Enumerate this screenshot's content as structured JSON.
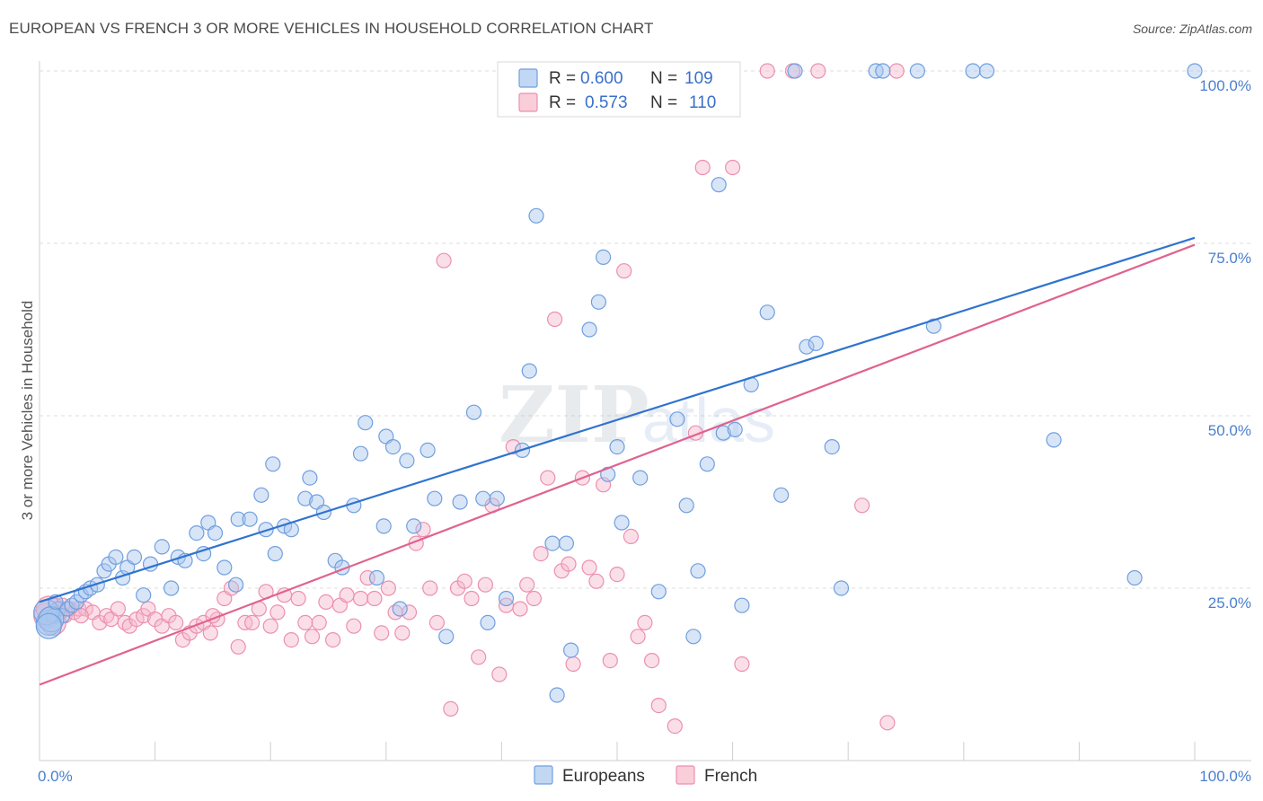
{
  "header": {
    "title": "EUROPEAN VS FRENCH 3 OR MORE VEHICLES IN HOUSEHOLD CORRELATION CHART",
    "source": "Source: ZipAtlas.com"
  },
  "legend": {
    "r_label": "R =",
    "n_label": "N =",
    "europeans_r": "0.600",
    "europeans_n": "109",
    "french_r": "0.573",
    "french_n": "110"
  },
  "colors": {
    "europeans_fill": "#a8c6ee",
    "europeans_stroke": "#6f9fe0",
    "europeans_line": "#2f73d0",
    "french_fill": "#f6b8cb",
    "french_stroke": "#ec8fae",
    "french_line": "#e0628f"
  },
  "chart_data": {
    "type": "scatter",
    "title": "EUROPEAN VS FRENCH 3 OR MORE VEHICLES IN HOUSEHOLD CORRELATION CHART",
    "xlabel": "",
    "ylabel": "3 or more Vehicles in Household",
    "xlim": [
      0,
      100
    ],
    "ylim": [
      0,
      100
    ],
    "x_tick_labels": [
      "0.0%",
      "100.0%"
    ],
    "y_tick_labels": [
      "25.0%",
      "50.0%",
      "75.0%",
      "100.0%"
    ],
    "y_ticks": [
      25,
      50,
      75,
      100
    ],
    "grid": true,
    "legend_bottom": [
      "Europeans",
      "French"
    ],
    "series": [
      {
        "name": "Europeans",
        "trend": [
          [
            0,
            23.0
          ],
          [
            100,
            75.8
          ]
        ],
        "points": [
          [
            0.8,
            20
          ],
          [
            1.2,
            21
          ],
          [
            1.6,
            22
          ],
          [
            2.0,
            21
          ],
          [
            2.4,
            22
          ],
          [
            2.8,
            22.5
          ],
          [
            3.2,
            23
          ],
          [
            3.6,
            24
          ],
          [
            4.0,
            24.5
          ],
          [
            4.4,
            25
          ],
          [
            5.0,
            25.5
          ],
          [
            5.6,
            27.5
          ],
          [
            6.0,
            28.5
          ],
          [
            6.6,
            29.5
          ],
          [
            7.2,
            26.5
          ],
          [
            7.6,
            28
          ],
          [
            8.2,
            29.5
          ],
          [
            9.0,
            24
          ],
          [
            9.6,
            28.5
          ],
          [
            10.6,
            31
          ],
          [
            11.4,
            25
          ],
          [
            12.0,
            29.5
          ],
          [
            12.6,
            29
          ],
          [
            13.6,
            33
          ],
          [
            14.2,
            30
          ],
          [
            14.6,
            34.5
          ],
          [
            15.2,
            33
          ],
          [
            16.0,
            28
          ],
          [
            17.0,
            25.5
          ],
          [
            17.2,
            35
          ],
          [
            18.2,
            35
          ],
          [
            19.2,
            38.5
          ],
          [
            19.6,
            33.5
          ],
          [
            20.2,
            43
          ],
          [
            20.4,
            30
          ],
          [
            21.2,
            34
          ],
          [
            21.8,
            33.5
          ],
          [
            23.0,
            38
          ],
          [
            23.4,
            41
          ],
          [
            24.0,
            37.5
          ],
          [
            24.6,
            36
          ],
          [
            25.6,
            29
          ],
          [
            26.2,
            28
          ],
          [
            27.2,
            37
          ],
          [
            27.8,
            44.5
          ],
          [
            28.2,
            49
          ],
          [
            29.2,
            26.5
          ],
          [
            29.8,
            34
          ],
          [
            30.0,
            47
          ],
          [
            30.6,
            45.5
          ],
          [
            31.2,
            22
          ],
          [
            31.8,
            43.5
          ],
          [
            32.4,
            34
          ],
          [
            33.6,
            45
          ],
          [
            34.2,
            38
          ],
          [
            35.2,
            18
          ],
          [
            36.4,
            37.5
          ],
          [
            37.6,
            50.5
          ],
          [
            38.4,
            38
          ],
          [
            38.8,
            20
          ],
          [
            39.6,
            38
          ],
          [
            40.4,
            23.5
          ],
          [
            41.8,
            45
          ],
          [
            42.4,
            56.5
          ],
          [
            43.0,
            79
          ],
          [
            44.4,
            31.5
          ],
          [
            44.8,
            9.5
          ],
          [
            45.6,
            31.5
          ],
          [
            46.0,
            16
          ],
          [
            47.6,
            62.5
          ],
          [
            48.4,
            66.5
          ],
          [
            48.8,
            73
          ],
          [
            49.2,
            41.5
          ],
          [
            50.0,
            45.5
          ],
          [
            50.4,
            34.5
          ],
          [
            52.0,
            41
          ],
          [
            52.8,
            100
          ],
          [
            53.6,
            24.5
          ],
          [
            54.6,
            100
          ],
          [
            55.2,
            49.5
          ],
          [
            56.0,
            37
          ],
          [
            56.6,
            18
          ],
          [
            57.0,
            27.5
          ],
          [
            57.8,
            43
          ],
          [
            58.8,
            83.5
          ],
          [
            59.2,
            47.5
          ],
          [
            60.2,
            48
          ],
          [
            60.8,
            22.5
          ],
          [
            61.6,
            54.5
          ],
          [
            63.0,
            65
          ],
          [
            64.2,
            38.5
          ],
          [
            65.4,
            100
          ],
          [
            66.4,
            60
          ],
          [
            67.2,
            60.5
          ],
          [
            68.6,
            45.5
          ],
          [
            69.4,
            25
          ],
          [
            72.4,
            100
          ],
          [
            73.0,
            100
          ],
          [
            76.0,
            100
          ],
          [
            77.4,
            63
          ],
          [
            80.8,
            100
          ],
          [
            82.0,
            100
          ],
          [
            87.8,
            46.5
          ],
          [
            94.8,
            26.5
          ],
          [
            100,
            100
          ],
          [
            0.6,
            21.5
          ],
          [
            1.0,
            20.5
          ],
          [
            1.4,
            23
          ],
          [
            0.8,
            19.5
          ]
        ]
      },
      {
        "name": "French",
        "trend": [
          [
            0,
            11.0
          ],
          [
            100,
            74.8
          ]
        ],
        "points": [
          [
            0.6,
            21
          ],
          [
            1.0,
            20.5
          ],
          [
            1.4,
            22.5
          ],
          [
            1.8,
            21.5
          ],
          [
            2.2,
            21
          ],
          [
            2.6,
            22
          ],
          [
            3.0,
            21.5
          ],
          [
            3.4,
            22
          ],
          [
            4.0,
            22
          ],
          [
            4.6,
            21.5
          ],
          [
            5.2,
            20
          ],
          [
            5.8,
            21
          ],
          [
            6.2,
            20.5
          ],
          [
            6.8,
            22
          ],
          [
            7.4,
            20
          ],
          [
            7.8,
            19.5
          ],
          [
            8.4,
            20.5
          ],
          [
            9.0,
            21
          ],
          [
            9.4,
            22
          ],
          [
            10.0,
            20.5
          ],
          [
            10.6,
            19.5
          ],
          [
            11.2,
            21
          ],
          [
            11.8,
            20
          ],
          [
            12.4,
            17.5
          ],
          [
            13.0,
            18.5
          ],
          [
            13.6,
            19.5
          ],
          [
            14.2,
            20
          ],
          [
            14.8,
            18.5
          ],
          [
            15.4,
            20.5
          ],
          [
            16.0,
            23.5
          ],
          [
            16.6,
            25
          ],
          [
            17.2,
            16.5
          ],
          [
            17.8,
            20
          ],
          [
            18.4,
            20
          ],
          [
            19.0,
            22
          ],
          [
            19.6,
            24.5
          ],
          [
            20.0,
            19.5
          ],
          [
            20.6,
            21.5
          ],
          [
            21.2,
            24
          ],
          [
            21.8,
            17.5
          ],
          [
            22.4,
            23.5
          ],
          [
            23.0,
            20
          ],
          [
            23.6,
            18
          ],
          [
            24.2,
            20
          ],
          [
            24.8,
            23
          ],
          [
            25.4,
            17.5
          ],
          [
            26.0,
            22.5
          ],
          [
            26.6,
            24
          ],
          [
            27.2,
            19.5
          ],
          [
            27.8,
            23.5
          ],
          [
            28.4,
            26.5
          ],
          [
            29.0,
            23.5
          ],
          [
            29.6,
            18.5
          ],
          [
            30.2,
            25
          ],
          [
            30.8,
            21.5
          ],
          [
            31.4,
            18.5
          ],
          [
            32.0,
            21.5
          ],
          [
            32.6,
            31.5
          ],
          [
            33.2,
            33.5
          ],
          [
            33.8,
            25
          ],
          [
            34.4,
            20
          ],
          [
            35.0,
            72.5
          ],
          [
            35.6,
            7.5
          ],
          [
            36.2,
            25
          ],
          [
            36.8,
            26
          ],
          [
            37.4,
            23.5
          ],
          [
            38.0,
            15
          ],
          [
            38.6,
            25.5
          ],
          [
            39.2,
            37
          ],
          [
            39.8,
            12.5
          ],
          [
            40.4,
            22.5
          ],
          [
            41.0,
            45.5
          ],
          [
            41.6,
            22
          ],
          [
            42.2,
            25.5
          ],
          [
            42.8,
            23.5
          ],
          [
            43.4,
            30
          ],
          [
            44.0,
            41
          ],
          [
            44.6,
            64
          ],
          [
            45.2,
            27.5
          ],
          [
            45.8,
            28.5
          ],
          [
            46.2,
            14
          ],
          [
            47.0,
            41
          ],
          [
            47.6,
            28
          ],
          [
            48.2,
            26
          ],
          [
            48.8,
            40
          ],
          [
            49.4,
            14.5
          ],
          [
            50.0,
            27
          ],
          [
            50.6,
            71
          ],
          [
            51.2,
            32.5
          ],
          [
            51.8,
            18
          ],
          [
            52.4,
            20
          ],
          [
            53.0,
            14.5
          ],
          [
            53.6,
            8
          ],
          [
            54.2,
            100
          ],
          [
            55.0,
            5
          ],
          [
            56.8,
            47.5
          ],
          [
            57.4,
            86
          ],
          [
            60.0,
            86
          ],
          [
            60.8,
            14
          ],
          [
            63.0,
            100
          ],
          [
            65.2,
            100
          ],
          [
            67.4,
            100
          ],
          [
            71.2,
            37
          ],
          [
            73.4,
            5.5
          ],
          [
            74.2,
            100
          ],
          [
            0.8,
            22
          ],
          [
            1.2,
            20
          ],
          [
            2.0,
            22.5
          ],
          [
            3.6,
            21
          ],
          [
            15.0,
            21
          ]
        ]
      }
    ]
  }
}
